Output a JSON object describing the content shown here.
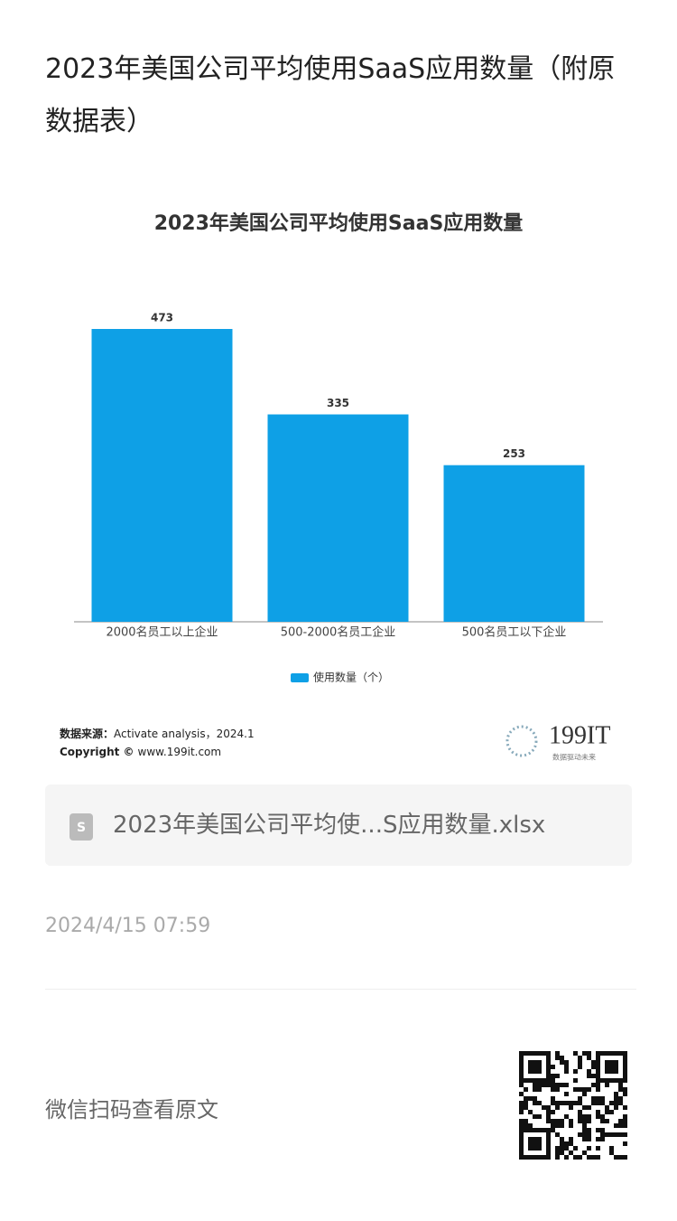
{
  "header": {
    "title": "2023年美国公司平均使用SaaS应用数量（附原数据表）"
  },
  "chart_data": {
    "type": "bar",
    "title": "2023年美国公司平均使用SaaS应用数量",
    "categories": [
      "2000名员工以上企业",
      "500-2000名员工企业",
      "500名员工以下企业"
    ],
    "series": [
      {
        "name": "使用数量（个）",
        "color": "#0ea0e6",
        "values": [
          473,
          335,
          253
        ]
      }
    ]
  },
  "source": {
    "label": "数据来源：",
    "text": "Activate analysis，2024.1",
    "copyright": "Copyright ©",
    "site": "www.199it.com",
    "logo": "199IT",
    "slogan": "数据驱动未来"
  },
  "attachment": {
    "filename": "2023年美国公司平均使...S应用数量.xlsx"
  },
  "date": "2024/4/15 07:59",
  "footer": {
    "text": "微信扫码查看原文"
  }
}
